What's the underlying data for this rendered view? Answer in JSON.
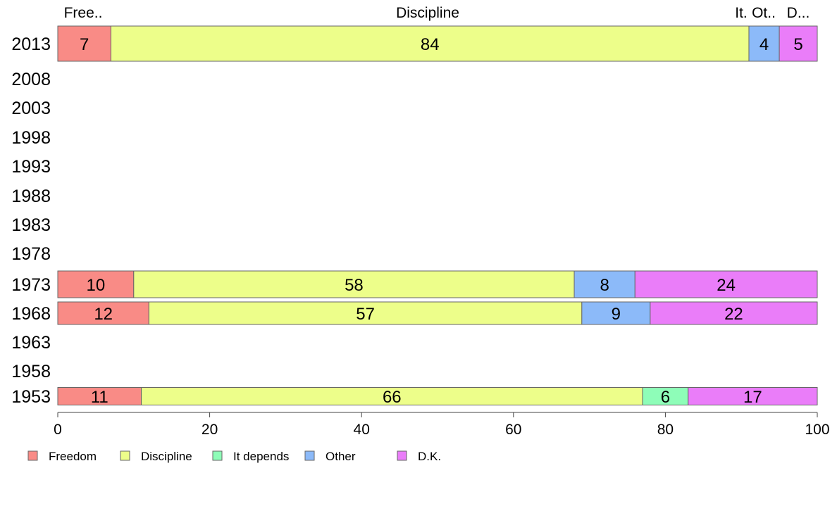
{
  "chart_data": {
    "type": "bar",
    "orientation": "horizontal",
    "stacked": true,
    "categories": [
      "2013",
      "2008",
      "2003",
      "1998",
      "1993",
      "1988",
      "1983",
      "1978",
      "1973",
      "1968",
      "1963",
      "1958",
      "1953"
    ],
    "series": [
      {
        "name": "Freedom",
        "color": "#f98b86",
        "values": [
          7,
          null,
          null,
          null,
          null,
          null,
          null,
          null,
          10,
          12,
          null,
          null,
          11
        ]
      },
      {
        "name": "Discipline",
        "color": "#edfe8a",
        "values": [
          84,
          null,
          null,
          null,
          null,
          null,
          null,
          null,
          58,
          57,
          null,
          null,
          66
        ]
      },
      {
        "name": "It depends",
        "color": "#8efdb8",
        "values": [
          0,
          null,
          null,
          null,
          null,
          null,
          null,
          null,
          0,
          0,
          null,
          null,
          6
        ]
      },
      {
        "name": "Other",
        "color": "#8cbaf9",
        "values": [
          4,
          null,
          null,
          null,
          null,
          null,
          null,
          null,
          8,
          9,
          null,
          null,
          0
        ]
      },
      {
        "name": "D.K.",
        "color": "#ea7df9",
        "values": [
          5,
          null,
          null,
          null,
          null,
          null,
          null,
          null,
          24,
          22,
          null,
          null,
          17
        ]
      }
    ],
    "top_labels": [
      "Free..",
      "Discipline",
      "It.",
      "Ot..",
      "D..."
    ],
    "xlim": [
      0,
      100
    ],
    "xticks": [
      "0",
      "20",
      "40",
      "60",
      "80",
      "100"
    ],
    "grid": false,
    "legend_position": "bottom-left"
  }
}
